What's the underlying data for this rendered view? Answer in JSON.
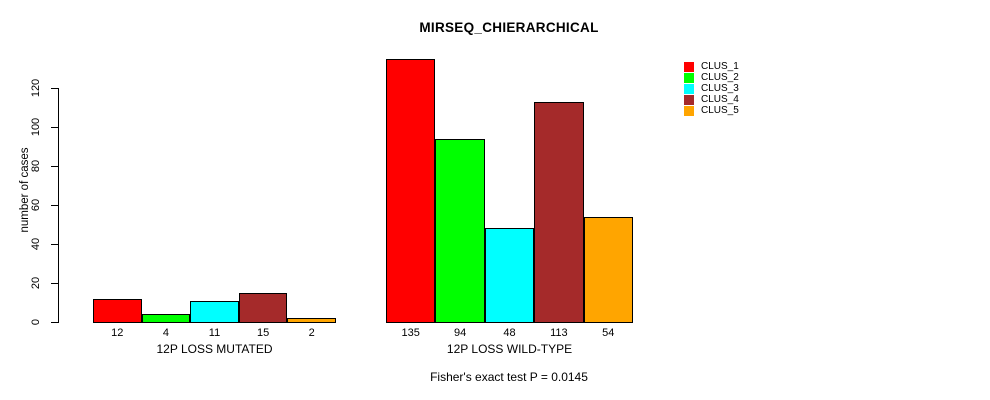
{
  "chart_data": {
    "type": "bar",
    "title": "MIRSEQ_CHIERARCHICAL",
    "categories": [
      "12P LOSS MUTATED",
      "12P LOSS WILD-TYPE"
    ],
    "series": [
      {
        "name": "CLUS_1",
        "color": "#FF0000",
        "values": [
          12,
          135
        ]
      },
      {
        "name": "CLUS_2",
        "color": "#00FF00",
        "values": [
          4,
          94
        ]
      },
      {
        "name": "CLUS_3",
        "color": "#00FFFF",
        "values": [
          11,
          48
        ]
      },
      {
        "name": "CLUS_4",
        "color": "#A52A2A",
        "values": [
          15,
          113
        ]
      },
      {
        "name": "CLUS_5",
        "color": "#FFA500",
        "values": [
          2,
          54
        ]
      }
    ],
    "xlabel": "",
    "ylabel": "number of cases",
    "ylim": [
      0,
      135
    ],
    "yticks": [
      0,
      20,
      40,
      60,
      80,
      100,
      120
    ],
    "grid": false,
    "legend_position": "topright",
    "bar_value_labels": true,
    "annotation": "Fisher's exact test P = 0.0145"
  }
}
